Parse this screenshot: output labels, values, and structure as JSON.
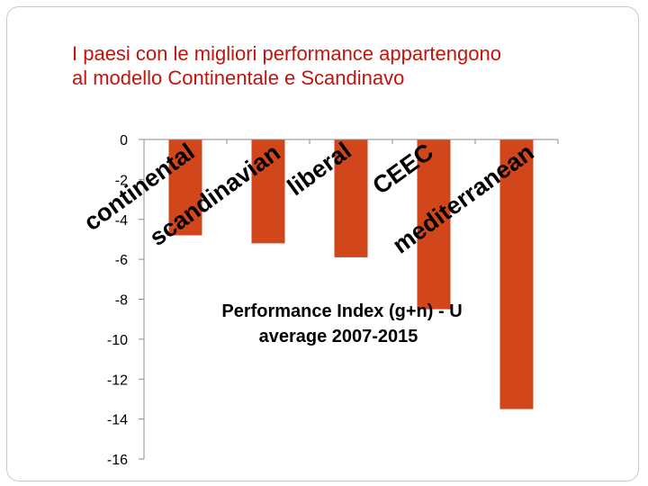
{
  "title": "I paesi con le migliori performance  appartengono\nal modello Continentale e Scandinavo",
  "colors": {
    "title": "#c0150c",
    "bar": "#d2461c",
    "axis": "#8c8c8c"
  },
  "chart_data": {
    "type": "bar",
    "categories": [
      "continental",
      "scandinavian",
      "liberal",
      "CEEC",
      "mediterranean"
    ],
    "values": [
      -4.8,
      -5.2,
      -5.9,
      -8.5,
      -13.5
    ],
    "ylim": [
      -16,
      0
    ],
    "yticks": [
      0,
      -2,
      -4,
      -6,
      -8,
      -10,
      -12,
      -14,
      -16
    ],
    "ytick_labels": [
      "0",
      "-2",
      "-4",
      "-6",
      "-8",
      "-10",
      "-12",
      "-14",
      "-16"
    ],
    "annotation": "Performance Index (g+n) - U\naverage 2007-2015",
    "grid": false,
    "legend": "none"
  }
}
